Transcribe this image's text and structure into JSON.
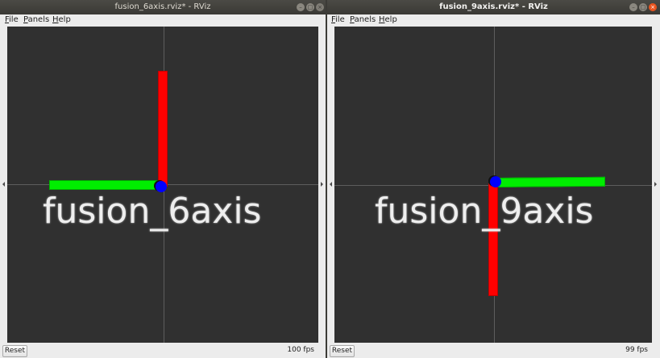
{
  "colors": {
    "x_axis": "#ff0000",
    "y_axis": "#00ee00",
    "z_axis": "#0000ff",
    "viewport_bg": "#303030",
    "close_button": "#e9541f"
  },
  "left_window": {
    "title": "fusion_6axis.rviz* - RViz",
    "menu": [
      {
        "mnemonic": "F",
        "rest": "ile"
      },
      {
        "mnemonic": "P",
        "rest": "anels"
      },
      {
        "mnemonic": "H",
        "rest": "elp"
      }
    ],
    "title_buttons": {
      "minimize_icon": "–",
      "maximize_icon": "□",
      "close_icon": "×"
    },
    "viewport_label": "fusion_6axis",
    "reset_label": "Reset",
    "fps": "100 fps"
  },
  "right_window": {
    "title": "fusion_9axis.rviz* - RViz",
    "menu": [
      {
        "mnemonic": "F",
        "rest": "ile"
      },
      {
        "mnemonic": "P",
        "rest": "anels"
      },
      {
        "mnemonic": "H",
        "rest": "elp"
      }
    ],
    "title_buttons": {
      "minimize_icon": "–",
      "maximize_icon": "□",
      "close_icon": "×"
    },
    "viewport_label": "fusion_9axis",
    "reset_label": "Reset",
    "fps": "99 fps"
  }
}
